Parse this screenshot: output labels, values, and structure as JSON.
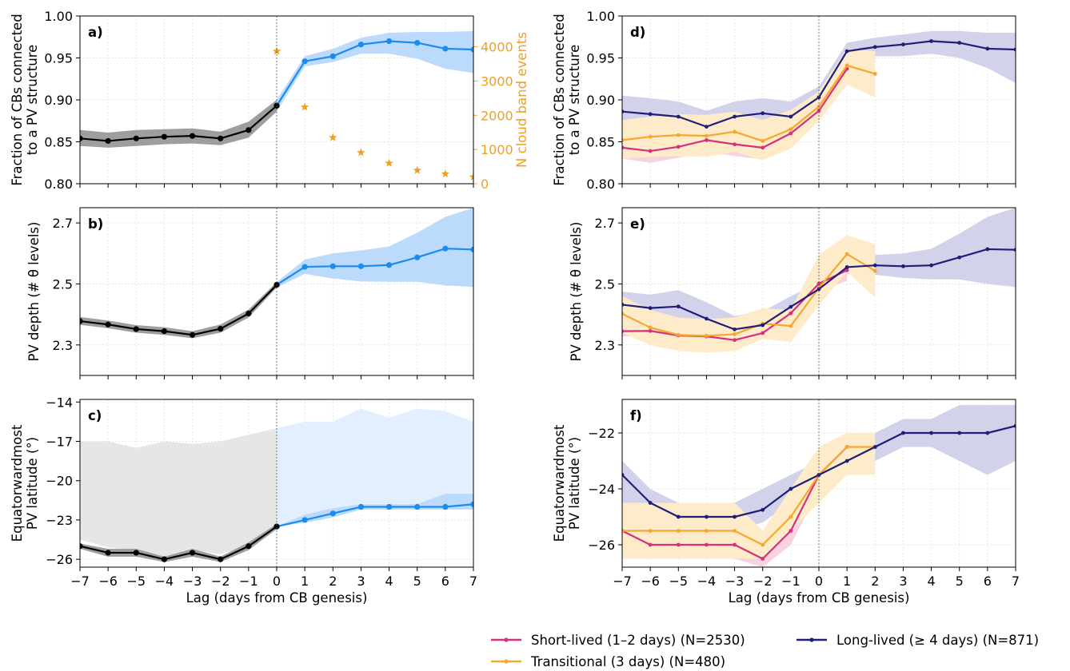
{
  "chart_data": [
    {
      "panel": "a)",
      "type": "line",
      "ylabel_lines": [
        "Fraction of CBs connected",
        "to a PV structure"
      ],
      "ylabel2": "N cloud band events",
      "ylim": [
        0.8,
        1.0
      ],
      "yticks": [
        "0.80",
        "0.85",
        "0.90",
        "0.95",
        "1.00"
      ],
      "ylim2": [
        0,
        4900
      ],
      "yticks2": [
        "0",
        "1000",
        "2000",
        "3000",
        "4000"
      ],
      "xlim": [
        -7,
        7
      ],
      "grid": true,
      "pre_series": {
        "x": [
          -7,
          -6,
          -5,
          -4,
          -3,
          -2,
          -1,
          0
        ],
        "y": [
          0.854,
          0.851,
          0.854,
          0.856,
          0.857,
          0.854,
          0.864,
          0.893
        ],
        "lower": [
          0.845,
          0.843,
          0.845,
          0.847,
          0.848,
          0.846,
          0.855,
          0.886
        ],
        "upper": [
          0.864,
          0.861,
          0.864,
          0.865,
          0.866,
          0.862,
          0.874,
          0.9
        ],
        "color": "#000000",
        "band_color": "#9e9e9e"
      },
      "post_series": {
        "x": [
          0,
          1,
          2,
          3,
          4,
          5,
          6,
          7
        ],
        "y": [
          0.893,
          0.946,
          0.952,
          0.966,
          0.97,
          0.968,
          0.961,
          0.96
        ],
        "lower": [
          0.886,
          0.94,
          0.945,
          0.955,
          0.955,
          0.949,
          0.937,
          0.932
        ],
        "upper": [
          0.9,
          0.952,
          0.961,
          0.974,
          0.98,
          0.981,
          0.981,
          0.982
        ],
        "color": "#1a8cf0",
        "band_color": "#bcdafb"
      },
      "events": {
        "x": [
          0,
          1,
          2,
          3,
          4,
          5,
          6,
          7
        ],
        "y": [
          3870,
          2240,
          1350,
          910,
          600,
          390,
          290,
          200
        ],
        "color": "#f0a020"
      }
    },
    {
      "panel": "b)",
      "type": "line",
      "ylabel": "PV depth (# θ levels)",
      "ylim": [
        2.2,
        2.75
      ],
      "yticks": [
        "2.3",
        "2.5",
        "2.7"
      ],
      "xlim": [
        -7,
        7
      ],
      "grid": true,
      "pre_series": {
        "x": [
          -7,
          -6,
          -5,
          -4,
          -3,
          -2,
          -1,
          0
        ],
        "y": [
          2.378,
          2.367,
          2.352,
          2.345,
          2.333,
          2.353,
          2.403,
          2.497
        ],
        "lower": [
          2.366,
          2.355,
          2.34,
          2.333,
          2.322,
          2.34,
          2.39,
          2.488
        ],
        "upper": [
          2.392,
          2.38,
          2.365,
          2.358,
          2.345,
          2.367,
          2.416,
          2.506
        ],
        "color": "#000000",
        "band_color": "#9e9e9e"
      },
      "post_series": {
        "x": [
          0,
          1,
          2,
          3,
          4,
          5,
          6,
          7
        ],
        "y": [
          2.497,
          2.556,
          2.558,
          2.558,
          2.562,
          2.587,
          2.616,
          2.613
        ],
        "lower": [
          2.488,
          2.533,
          2.518,
          2.508,
          2.507,
          2.507,
          2.495,
          2.49
        ],
        "upper": [
          2.506,
          2.58,
          2.6,
          2.61,
          2.623,
          2.668,
          2.72,
          2.75
        ],
        "color": "#1a8cf0",
        "band_color": "#bcdafb"
      }
    },
    {
      "panel": "c)",
      "type": "line",
      "ylabel_lines": [
        "Equatorwardmost",
        "PV latitude (°)"
      ],
      "ylim": [
        -26.6,
        -13.8
      ],
      "yticks": [
        "-26",
        "-23",
        "-20",
        "-17",
        "-14"
      ],
      "xlim": [
        -7,
        7
      ],
      "grid": true,
      "pre_series": {
        "x": [
          -7,
          -6,
          -5,
          -4,
          -3,
          -2,
          -1,
          0
        ],
        "y": [
          -25,
          -25.5,
          -25.5,
          -26,
          -25.5,
          -26,
          -25,
          -23.5
        ],
        "lower": [
          -25.2,
          -25.8,
          -25.8,
          -26.2,
          -25.8,
          -26.2,
          -25.3,
          -23.7
        ],
        "upper": [
          -24.8,
          -25.2,
          -25.2,
          -25.8,
          -25.2,
          -25.8,
          -24.7,
          -23.3
        ],
        "wide_lower": [
          -24.5,
          -25.1,
          -25.3,
          -25.9,
          -25.3,
          -25.6,
          -25,
          -23.5
        ],
        "wide_upper": [
          -17,
          -17,
          -17.5,
          -17,
          -17.2,
          -17,
          -16.5,
          -16
        ],
        "color": "#000000",
        "band_color": "#9e9e9e",
        "wide_band_color": "#e6e6e6"
      },
      "post_series": {
        "x": [
          0,
          1,
          2,
          3,
          4,
          5,
          6,
          7
        ],
        "y": [
          -23.5,
          -23,
          -22.5,
          -22,
          -22,
          -22,
          -22,
          -21.8
        ],
        "lower": [
          -23.5,
          -23.2,
          -22.8,
          -22.2,
          -22.2,
          -22.2,
          -22.2,
          -22.2
        ],
        "upper": [
          -23.5,
          -22.6,
          -22.1,
          -21.8,
          -21.8,
          -21.8,
          -21,
          -21
        ],
        "wide_lower": [
          -23.5,
          -23,
          -22.5,
          -22,
          -22,
          -22,
          -22,
          -21.8
        ],
        "wide_upper": [
          -16,
          -15.5,
          -15.5,
          -14.5,
          -15.2,
          -14.5,
          -14.7,
          -15.5
        ],
        "color": "#1a8cf0",
        "band_color": "#bcdafb",
        "wide_band_color": "#e1efff"
      },
      "xlabel": "Lag (days from CB genesis)",
      "xticks": [
        "-7",
        "-6",
        "-5",
        "-4",
        "-3",
        "-2",
        "-1",
        "0",
        "1",
        "2",
        "3",
        "4",
        "5",
        "6",
        "7"
      ]
    },
    {
      "panel": "d)",
      "type": "line",
      "ylabel_lines": [
        "Fraction of CBs connected",
        "to a PV structure"
      ],
      "ylim": [
        0.8,
        1.0
      ],
      "yticks": [
        "0.80",
        "0.85",
        "0.90",
        "0.95",
        "1.00"
      ],
      "xlim": [
        -7,
        7
      ],
      "grid": true,
      "series": [
        {
          "name": "Long-lived (≥ 4 days) (N=871)",
          "color": "#1f1f7a",
          "band_color": "#d2d2ea",
          "x": [
            -7,
            -6,
            -5,
            -4,
            -3,
            -2,
            -1,
            0,
            1,
            2,
            3,
            4,
            5,
            6,
            7
          ],
          "y": [
            0.886,
            0.883,
            0.88,
            0.868,
            0.88,
            0.884,
            0.88,
            0.903,
            0.958,
            0.963,
            0.966,
            0.97,
            0.968,
            0.961,
            0.96
          ],
          "lower": [
            0.868,
            0.865,
            0.862,
            0.85,
            0.862,
            0.866,
            0.862,
            0.89,
            0.948,
            0.952,
            0.952,
            0.955,
            0.95,
            0.938,
            0.92
          ],
          "upper": [
            0.905,
            0.902,
            0.898,
            0.887,
            0.898,
            0.902,
            0.898,
            0.916,
            0.968,
            0.974,
            0.978,
            0.982,
            0.982,
            0.98,
            0.98
          ]
        },
        {
          "name": "Short-lived (1–2 days) (N=2530)",
          "color": "#d6307e",
          "band_color": "#f7d2df",
          "x": [
            -7,
            -6,
            -5,
            -4,
            -3,
            -2,
            -1,
            0,
            1
          ],
          "y": [
            0.843,
            0.839,
            0.844,
            0.852,
            0.847,
            0.843,
            0.86,
            0.887,
            0.937
          ],
          "lower": [
            0.83,
            0.825,
            0.831,
            0.838,
            0.833,
            0.829,
            0.846,
            0.876,
            0.928
          ],
          "upper": [
            0.856,
            0.853,
            0.858,
            0.866,
            0.861,
            0.857,
            0.874,
            0.898,
            0.946
          ]
        },
        {
          "name": "Transitional (3 days) (N=480)",
          "color": "#f5a830",
          "band_color": "#fdebc9",
          "x": [
            -7,
            -6,
            -5,
            -4,
            -3,
            -2,
            -1,
            0,
            1,
            2
          ],
          "y": [
            0.852,
            0.856,
            0.858,
            0.857,
            0.862,
            0.851,
            0.865,
            0.892,
            0.941,
            0.931
          ],
          "lower": [
            0.83,
            0.832,
            0.833,
            0.832,
            0.838,
            0.828,
            0.842,
            0.875,
            0.918,
            0.903
          ],
          "upper": [
            0.876,
            0.88,
            0.883,
            0.882,
            0.886,
            0.876,
            0.888,
            0.91,
            0.961,
            0.958
          ]
        }
      ]
    },
    {
      "panel": "e)",
      "type": "line",
      "ylabel": "PV depth (# θ levels)",
      "ylim": [
        2.2,
        2.75
      ],
      "yticks": [
        "2.3",
        "2.5",
        "2.7"
      ],
      "xlim": [
        -7,
        7
      ],
      "grid": true,
      "series": [
        {
          "name": "Long-lived (≥ 4 days) (N=871)",
          "color": "#1f1f7a",
          "band_color": "#d2d2ea",
          "x": [
            -7,
            -6,
            -5,
            -4,
            -3,
            -2,
            -1,
            0,
            1,
            2,
            3,
            4,
            5,
            6,
            7
          ],
          "y": [
            2.432,
            2.421,
            2.426,
            2.386,
            2.351,
            2.365,
            2.425,
            2.483,
            2.555,
            2.561,
            2.558,
            2.561,
            2.587,
            2.614,
            2.612
          ],
          "lower": [
            2.39,
            2.38,
            2.375,
            2.34,
            2.31,
            2.32,
            2.39,
            2.46,
            2.533,
            2.53,
            2.52,
            2.515,
            2.515,
            2.5,
            2.49
          ],
          "upper": [
            2.475,
            2.465,
            2.48,
            2.44,
            2.395,
            2.41,
            2.46,
            2.505,
            2.58,
            2.595,
            2.6,
            2.615,
            2.665,
            2.72,
            2.75
          ]
        },
        {
          "name": "Short-lived (1–2 days) (N=2530)",
          "color": "#d6307e",
          "band_color": "#f7d2df",
          "x": [
            -7,
            -6,
            -5,
            -4,
            -3,
            -2,
            -1,
            0,
            1
          ],
          "y": [
            2.345,
            2.346,
            2.331,
            2.328,
            2.316,
            2.339,
            2.404,
            2.501,
            2.545
          ],
          "lower": [
            2.328,
            2.329,
            2.314,
            2.311,
            2.299,
            2.322,
            2.385,
            2.478,
            2.51
          ],
          "upper": [
            2.362,
            2.363,
            2.348,
            2.345,
            2.333,
            2.356,
            2.423,
            2.524,
            2.58
          ]
        },
        {
          "name": "Transitional (3 days) (N=480)",
          "color": "#f5a830",
          "band_color": "#fdebc9",
          "x": [
            -7,
            -6,
            -5,
            -4,
            -3,
            -2,
            -1,
            0,
            1,
            2
          ],
          "y": [
            2.402,
            2.357,
            2.333,
            2.33,
            2.335,
            2.37,
            2.362,
            2.487,
            2.598,
            2.543
          ],
          "lower": [
            2.34,
            2.3,
            2.28,
            2.275,
            2.28,
            2.32,
            2.31,
            2.43,
            2.54,
            2.455
          ],
          "upper": [
            2.46,
            2.415,
            2.39,
            2.385,
            2.39,
            2.42,
            2.415,
            2.595,
            2.66,
            2.63
          ]
        }
      ]
    },
    {
      "panel": "f)",
      "type": "line",
      "ylabel_lines": [
        "Equatorwardmost",
        "PV latitude (°)"
      ],
      "ylim": [
        -26.8,
        -20.8
      ],
      "yticks": [
        "-26",
        "-24",
        "-22"
      ],
      "xlim": [
        -7,
        7
      ],
      "grid": true,
      "series": [
        {
          "name": "Long-lived (≥ 4 days) (N=871)",
          "color": "#1f1f7a",
          "band_color": "#d2d2ea",
          "x": [
            -7,
            -6,
            -5,
            -4,
            -3,
            -2,
            -1,
            0,
            1,
            2,
            3,
            4,
            5,
            6,
            7
          ],
          "y": [
            -23.5,
            -24.5,
            -25,
            -25,
            -25,
            -24.75,
            -24,
            -23.5,
            -23,
            -22.5,
            -22,
            -22,
            -22,
            -22,
            -21.75
          ],
          "lower": [
            -24.5,
            -25.5,
            -25.5,
            -25.5,
            -25.5,
            -25.2,
            -24.5,
            -24,
            -23.5,
            -23,
            -22.5,
            -22.5,
            -23,
            -23.5,
            -23
          ],
          "upper": [
            -23,
            -24,
            -24.5,
            -24.5,
            -24.5,
            -24,
            -23.5,
            -23,
            -22.5,
            -22,
            -21.5,
            -21.5,
            -21,
            -21,
            -21
          ]
        },
        {
          "name": "Short-lived (1–2 days) (N=2530)",
          "color": "#d6307e",
          "band_color": "#f7d2df",
          "x": [
            -7,
            -6,
            -5,
            -4,
            -3,
            -2,
            -1,
            0,
            1
          ],
          "y": [
            -25.5,
            -26,
            -26,
            -26,
            -26,
            -26.5,
            -25.5,
            -23.5,
            -22.5
          ],
          "lower": [
            -26,
            -26.5,
            -26.5,
            -26.5,
            -26.5,
            -26.8,
            -26,
            -24,
            -23
          ],
          "upper": [
            -25,
            -25.5,
            -25.5,
            -25.5,
            -25.5,
            -26,
            -25,
            -23,
            -22
          ]
        },
        {
          "name": "Transitional (3 days) (N=480)",
          "color": "#f5a830",
          "band_color": "#fdebc9",
          "x": [
            -7,
            -6,
            -5,
            -4,
            -3,
            -2,
            -1,
            0,
            1,
            2
          ],
          "y": [
            -25.5,
            -25.5,
            -25.5,
            -25.5,
            -25.5,
            -26,
            -25,
            -23.5,
            -22.5,
            -22.5
          ],
          "lower": [
            -26.5,
            -26.5,
            -26.5,
            -26.5,
            -26.5,
            -26.5,
            -25.5,
            -24.5,
            -23.5,
            -23.5
          ],
          "upper": [
            -24.5,
            -24.5,
            -24.5,
            -24.5,
            -24.5,
            -25.5,
            -24,
            -22.5,
            -22,
            -22
          ]
        }
      ],
      "xlabel": "Lag (days from CB genesis)",
      "xticks": [
        "-7",
        "-6",
        "-5",
        "-4",
        "-3",
        "-2",
        "-1",
        "0",
        "1",
        "2",
        "3",
        "4",
        "5",
        "6",
        "7"
      ]
    }
  ],
  "legend": {
    "placement": "bottom-right",
    "items": [
      {
        "label": "Short-lived (1–2 days) (N=2530)",
        "color": "#d6307e"
      },
      {
        "label": "Long-lived (≥ 4 days) (N=871)",
        "color": "#1f1f7a"
      },
      {
        "label": "Transitional (3 days) (N=480)",
        "color": "#f5a830"
      }
    ]
  }
}
